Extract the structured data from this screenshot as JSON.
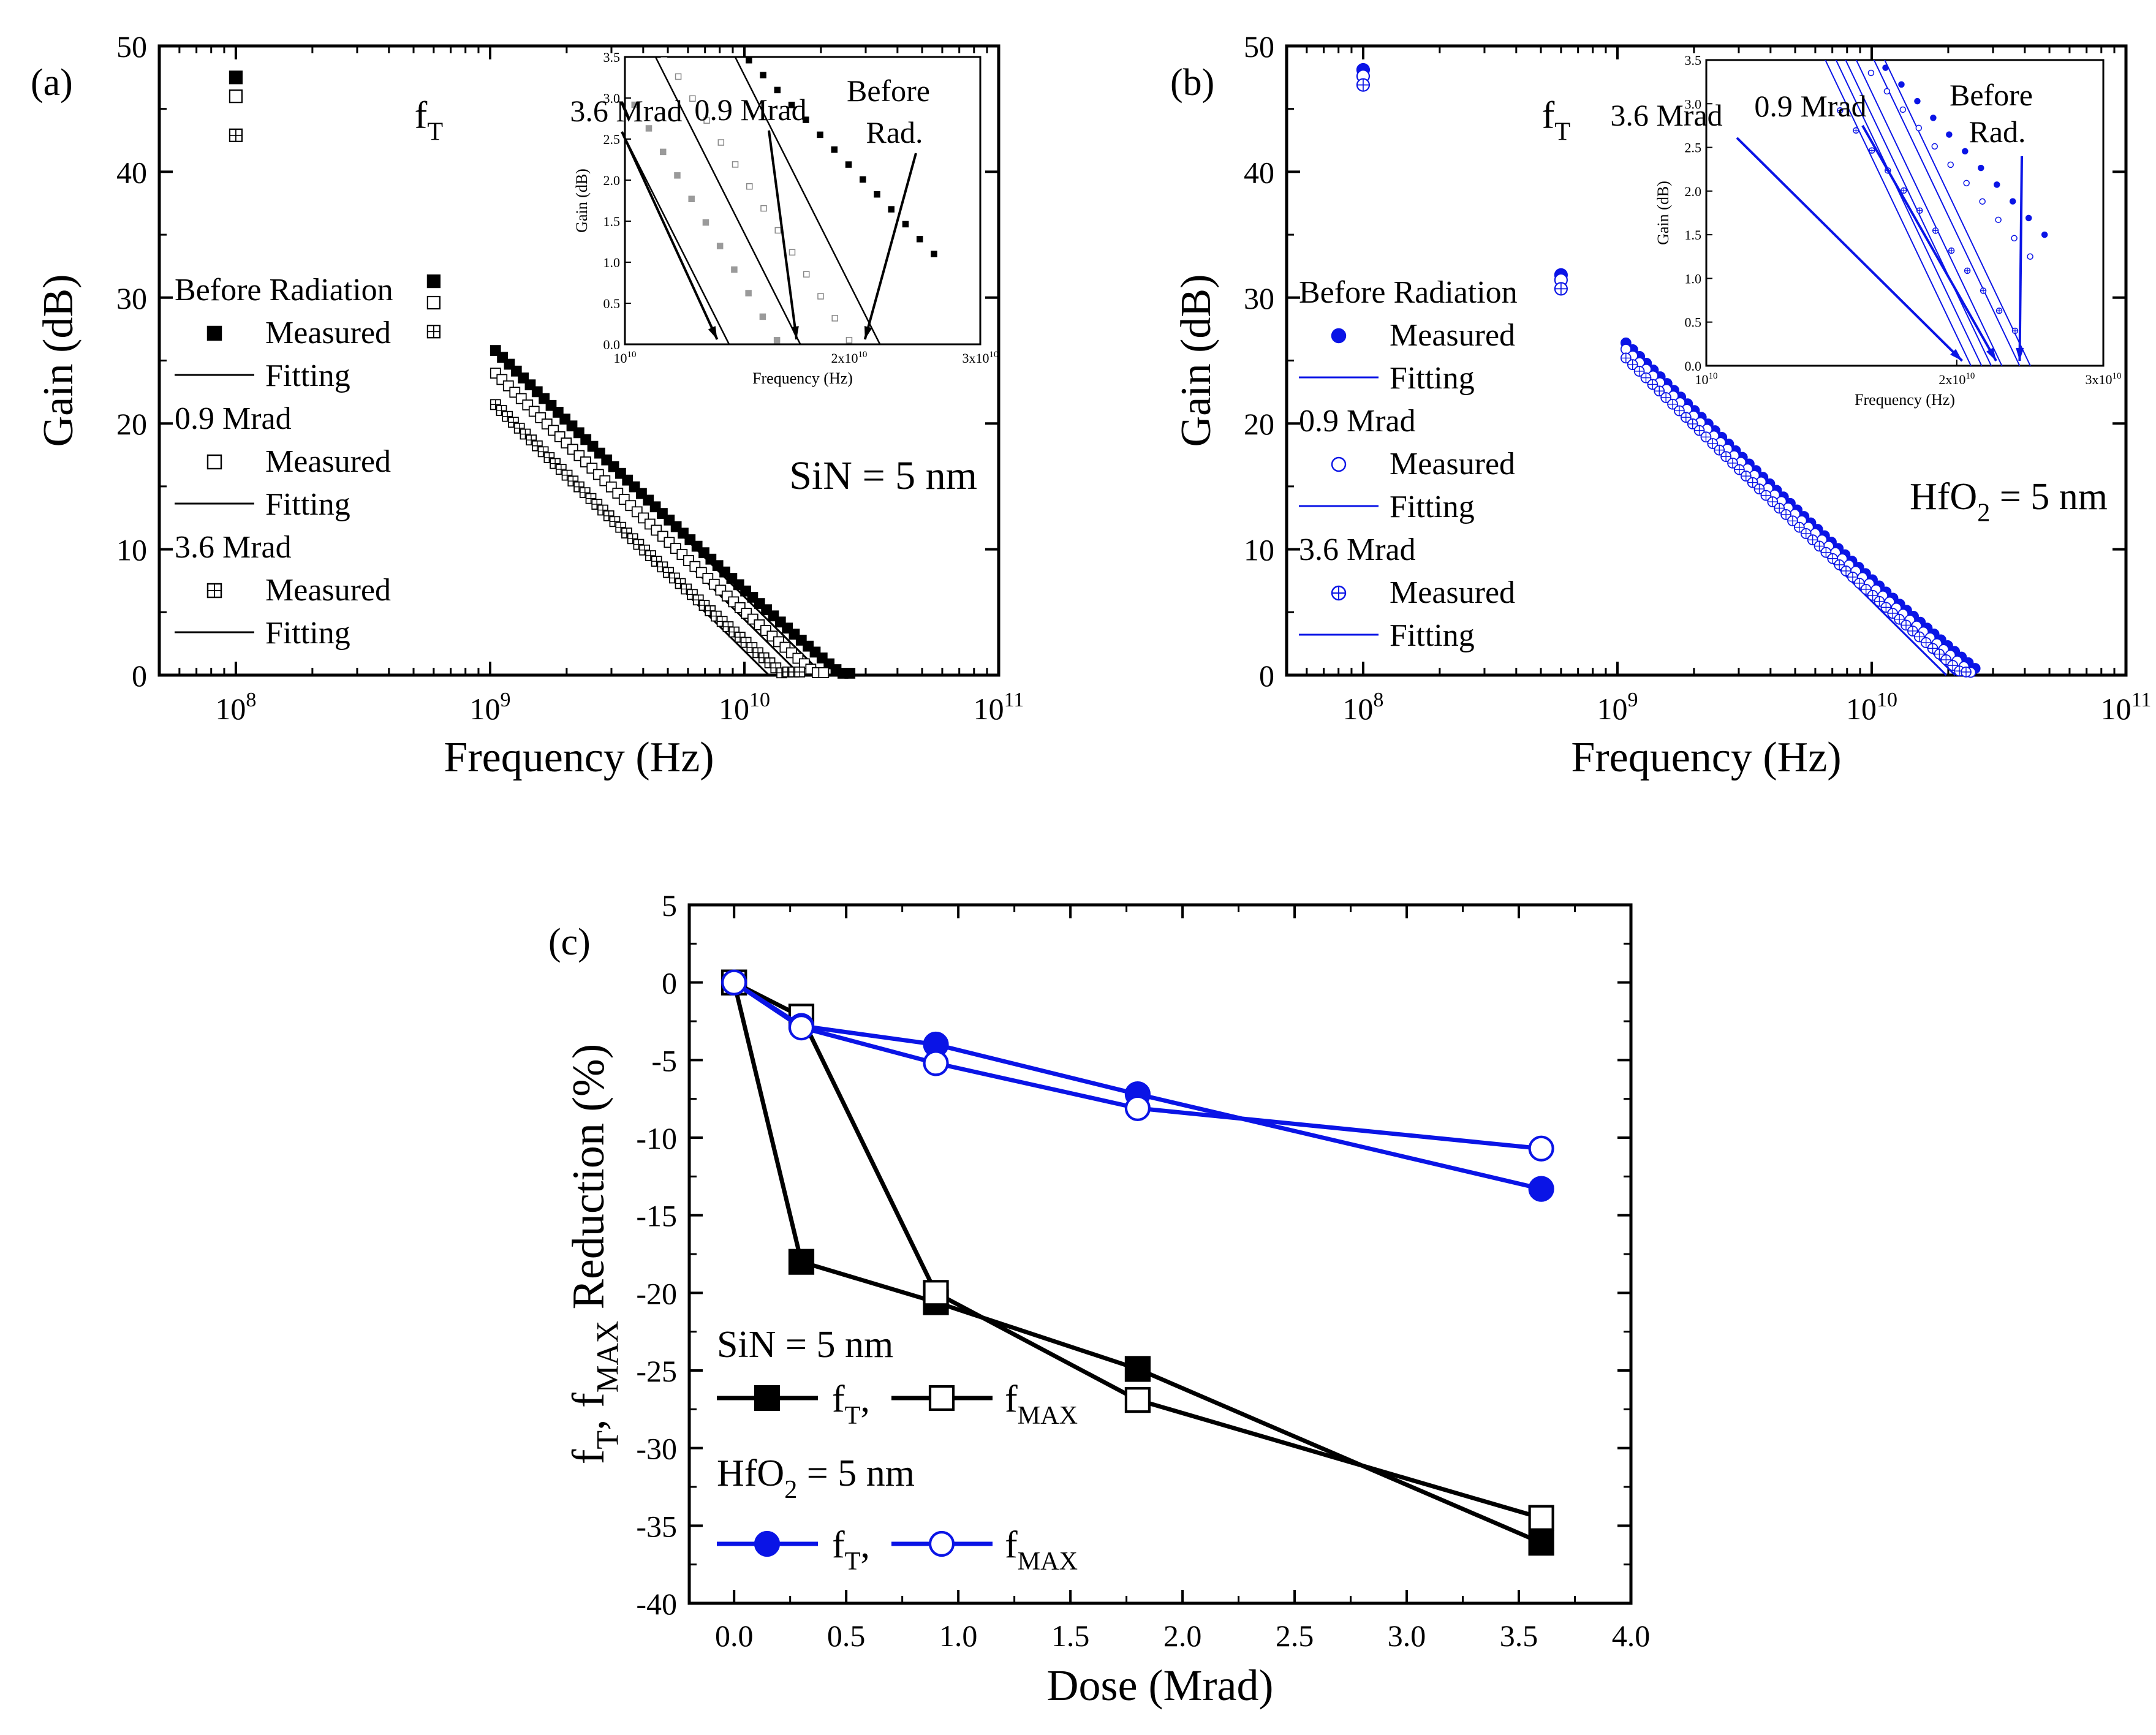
{
  "colors": {
    "black": "#000000",
    "blue": "#0a14e6",
    "gray": "#8a8a8a"
  },
  "chart_data": [
    {
      "id": "a",
      "panel_label": "(a)",
      "type": "line",
      "xlabel": "Frequency (Hz)",
      "ylabel": "Gain (dB)",
      "xscale": "log",
      "xlim": [
        50000000.0,
        100000000000.0
      ],
      "ylim": [
        0,
        50
      ],
      "yticks": [
        0,
        10,
        20,
        30,
        40,
        50
      ],
      "xtick_labels": [
        {
          "x": 100000000.0,
          "b": "10",
          "e": "8"
        },
        {
          "x": 1000000000.0,
          "b": "10",
          "e": "9"
        },
        {
          "x": 10000000000.0,
          "b": "10",
          "e": "10"
        },
        {
          "x": 100000000000.0,
          "b": "10",
          "e": "11"
        }
      ],
      "annotation_main": "SiN = 5 nm",
      "ft_label": {
        "b": "f",
        "s": "T"
      },
      "color": "#000000",
      "legend": {
        "groups": [
          {
            "title": "Before Radiation",
            "measured": "Measured",
            "fitting": "Fitting",
            "marker": "filled-square"
          },
          {
            "title": "0.9 Mrad",
            "measured": "Measured",
            "fitting": "Fitting",
            "marker": "open-square"
          },
          {
            "title": "3.6 Mrad",
            "measured": "Measured",
            "fitting": "Fitting",
            "marker": "cross-square"
          }
        ]
      },
      "series": [
        {
          "name": "Before Radiation",
          "marker": "filled-square",
          "points": [
            [
              100000000.0,
              47.5
            ],
            [
              600000000.0,
              31.3
            ]
          ],
          "fit": {
            "a": 25.8,
            "slope": -20,
            "x0": 1050000000.0
          },
          "fmax": 26000000000.0
        },
        {
          "name": "0.9 Mrad",
          "marker": "open-square",
          "points": [
            [
              100000000.0,
              46
            ],
            [
              600000000.0,
              29.6
            ]
          ],
          "fit": {
            "a": 24,
            "slope": -20,
            "x0": 1050000000.0
          },
          "fmax": 20500000000.0
        },
        {
          "name": "3.6 Mrad",
          "marker": "cross-square",
          "points": [
            [
              100000000.0,
              42.9
            ],
            [
              600000000.0,
              27.3
            ]
          ],
          "fit": {
            "a": 21.5,
            "slope": -20,
            "x0": 1050000000.0
          },
          "fmax": 16500000000.0
        }
      ],
      "inset": {
        "xlabel": "Frequency (Hz)",
        "ylabel": "Gain (dB)",
        "xlim": [
          10000000000.0,
          30000000000.0
        ],
        "ylim": [
          0,
          3.5
        ],
        "yticks": [
          "0.0",
          "0.5",
          "1.0",
          "1.5",
          "2.0",
          "2.5",
          "3.0",
          "3.5"
        ],
        "xtick_labels": [
          {
            "x": 10000000000.0,
            "b": "10",
            "e": "10"
          },
          {
            "x": 20000000000.0,
            "b": "2x10",
            "e": "10"
          },
          {
            "x": 30000000000.0,
            "b": "3x10",
            "e": "10"
          }
        ],
        "arrows": [
          {
            "label": "3.6 Mrad",
            "to": 13300000000.0
          },
          {
            "label": "0.9 Mrad",
            "to": 17000000000.0
          },
          {
            "label": "Before",
            "label2": "Rad.",
            "to": 21000000000.0
          }
        ]
      }
    },
    {
      "id": "b",
      "panel_label": "(b)",
      "type": "line",
      "xlabel": "Frequency (Hz)",
      "ylabel": "Gain (dB)",
      "xscale": "log",
      "xlim": [
        50000000.0,
        100000000000.0
      ],
      "ylim": [
        0,
        50
      ],
      "yticks": [
        0,
        10,
        20,
        30,
        40,
        50
      ],
      "xtick_labels": [
        {
          "x": 100000000.0,
          "b": "10",
          "e": "8"
        },
        {
          "x": 1000000000.0,
          "b": "10",
          "e": "9"
        },
        {
          "x": 10000000000.0,
          "b": "10",
          "e": "10"
        },
        {
          "x": 100000000000.0,
          "b": "10",
          "e": "11"
        }
      ],
      "annotation_main": {
        "pre": "HfO",
        "sub": "2",
        "post": " = 5 nm"
      },
      "ft_label": {
        "b": "f",
        "s": "T"
      },
      "color": "#0a14e6",
      "legend": {
        "groups": [
          {
            "title": "Before Radiation",
            "measured": "Measured",
            "fitting": "Fitting",
            "marker": "filled-circle"
          },
          {
            "title": "0.9 Mrad",
            "measured": "Measured",
            "fitting": "Fitting",
            "marker": "open-circle"
          },
          {
            "title": "3.6 Mrad",
            "measured": "Measured",
            "fitting": "Fitting",
            "marker": "cross-circle"
          }
        ]
      },
      "series": [
        {
          "name": "Before Radiation",
          "marker": "filled-circle",
          "points": [
            [
              100000000.0,
              48.1
            ],
            [
              600000000.0,
              31.8
            ]
          ],
          "fit": {
            "a": 26.4,
            "slope": -20,
            "x0": 1080000000.0
          },
          "fmax": 25500000000.0
        },
        {
          "name": "0.9 Mrad",
          "marker": "open-circle",
          "points": [
            [
              100000000.0,
              47.6
            ],
            [
              600000000.0,
              31.4
            ]
          ],
          "fit": {
            "a": 25.9,
            "slope": -20,
            "x0": 1080000000.0
          },
          "fmax": 24500000000.0
        },
        {
          "name": "3.6 Mrad",
          "marker": "cross-circle",
          "points": [
            [
              100000000.0,
              46.9
            ],
            [
              600000000.0,
              30.7
            ]
          ],
          "fit": {
            "a": 25.2,
            "slope": -20,
            "x0": 1080000000.0
          },
          "fmax": 23500000000.0
        }
      ],
      "inset": {
        "xlabel": "Frequency (Hz)",
        "ylabel": "Gain (dB)",
        "xlim": [
          10000000000.0,
          30000000000.0
        ],
        "ylim": [
          0,
          3.5
        ],
        "yticks": [
          "0.0",
          "0.5",
          "1.0",
          "1.5",
          "2.0",
          "2.5",
          "3.0",
          "3.5"
        ],
        "xtick_labels": [
          {
            "x": 10000000000.0,
            "b": "10",
            "e": "10"
          },
          {
            "x": 20000000000.0,
            "b": "2x10",
            "e": "10"
          },
          {
            "x": 30000000000.0,
            "b": "3x10",
            "e": "10"
          }
        ],
        "arrows": [
          {
            "label": "3.6 Mrad",
            "to": 20300000000.0
          },
          {
            "label": "0.9 Mrad",
            "to": 22300000000.0
          },
          {
            "label": "Before",
            "label2": "Rad.",
            "to": 23800000000.0
          }
        ]
      }
    },
    {
      "id": "c",
      "panel_label": "(c)",
      "type": "line",
      "xlabel": "Dose (Mrad)",
      "ylabel": {
        "parts": [
          "f",
          "T",
          ", f",
          "MAX",
          " Reduction (%)"
        ]
      },
      "xlim": [
        -0.2,
        4.0
      ],
      "ylim": [
        -40,
        5
      ],
      "xticks": [
        "0.0",
        "0.5",
        "1.0",
        "1.5",
        "2.0",
        "2.5",
        "3.0",
        "3.5",
        "4.0"
      ],
      "yticks": [
        "5",
        "0",
        "-5",
        "-10",
        "-15",
        "-20",
        "-25",
        "-30",
        "-35",
        "-40"
      ],
      "x": [
        0,
        0.3,
        0.9,
        1.8,
        3.6
      ],
      "legend": {
        "sin_title": "SiN = 5 nm",
        "hfo_title": {
          "pre": "HfO",
          "sub": "2",
          "post": " = 5 nm"
        },
        "ft": {
          "b": "f",
          "s": "T",
          "c": ","
        },
        "fmax": {
          "b": "f",
          "s": "MAX"
        }
      },
      "series": [
        {
          "name": "SiN fT",
          "color": "#000000",
          "marker": "filled-square",
          "values": [
            0,
            -18,
            -20.6,
            -24.9,
            -36.1
          ]
        },
        {
          "name": "SiN fMAX",
          "color": "#000000",
          "marker": "open-square",
          "values": [
            0,
            -2.2,
            -20,
            -26.9,
            -34.5
          ]
        },
        {
          "name": "HfO2 fT",
          "color": "#0a14e6",
          "marker": "filled-circle",
          "values": [
            0,
            -2.8,
            -4,
            -7.2,
            -13.3
          ]
        },
        {
          "name": "HfO2 fMAX",
          "color": "#0a14e6",
          "marker": "open-circle",
          "values": [
            0,
            -2.9,
            -5.2,
            -8.1,
            -10.7
          ]
        }
      ]
    }
  ]
}
